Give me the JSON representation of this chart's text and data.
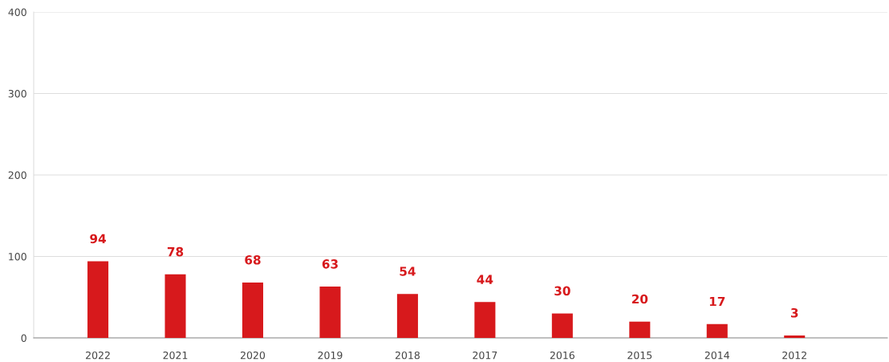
{
  "chart_data": {
    "type": "bar",
    "categories": [
      "2022",
      "2021",
      "2020",
      "2019",
      "2018",
      "2017",
      "2016",
      "2015",
      "2014",
      "2012"
    ],
    "values": [
      94,
      78,
      68,
      63,
      54,
      44,
      30,
      20,
      17,
      3
    ],
    "color": "#d7191c",
    "ylim": [
      0,
      400
    ],
    "yticks": [
      0,
      100,
      200,
      300,
      400
    ],
    "grid": "y",
    "data_labels": true
  }
}
